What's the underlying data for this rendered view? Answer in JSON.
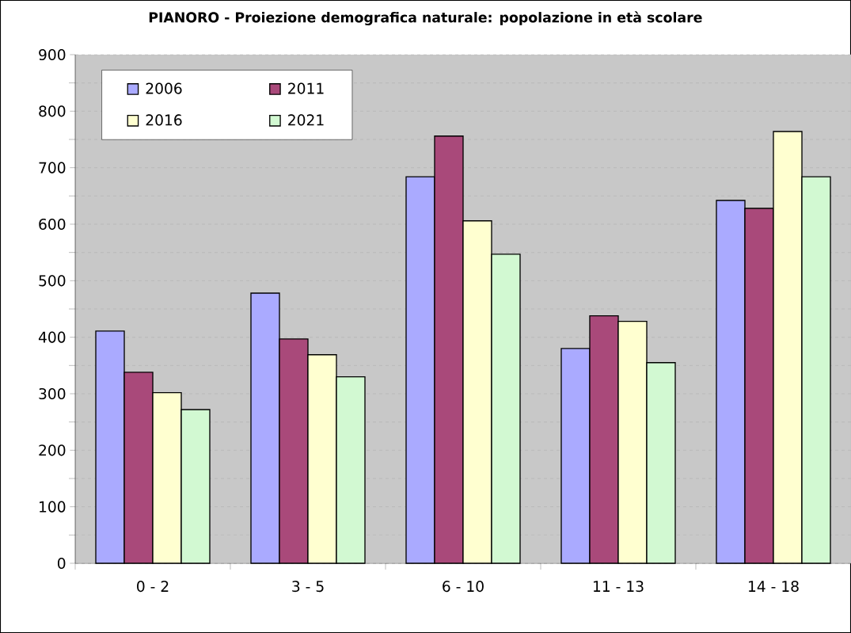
{
  "chart_data": {
    "type": "bar",
    "title": "PIANORO - Proiezione demografica naturale: popolazione in età scolare",
    "categories": [
      "0 - 2",
      "3 - 5",
      "6 - 10",
      "11 - 13",
      "14 - 18"
    ],
    "series": [
      {
        "name": "2006",
        "color": "#aaaaff",
        "values": [
          411,
          478,
          684,
          380,
          642
        ]
      },
      {
        "name": "2011",
        "color": "#a9497a",
        "values": [
          338,
          397,
          756,
          438,
          628
        ]
      },
      {
        "name": "2016",
        "color": "#ffffd0",
        "values": [
          302,
          369,
          606,
          428,
          764
        ]
      },
      {
        "name": "2021",
        "color": "#d2f9d2",
        "values": [
          272,
          330,
          547,
          355,
          684
        ]
      }
    ],
    "ylim": [
      0,
      900
    ],
    "yticks": [
      0,
      100,
      200,
      300,
      400,
      500,
      600,
      700,
      800,
      900
    ],
    "grid": "y",
    "legend": "top left"
  }
}
